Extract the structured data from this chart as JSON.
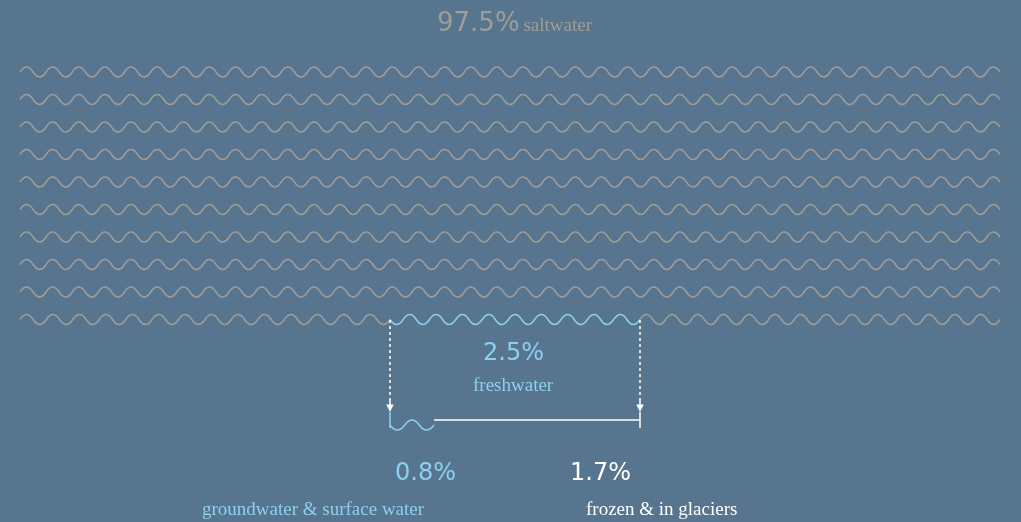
{
  "chart_data": {
    "type": "other",
    "categories": [
      "saltwater",
      "freshwater",
      "groundwater & surface water",
      "frozen & in glaciers"
    ],
    "values": [
      97.5,
      2.5,
      0.8,
      1.7
    ],
    "value_labels": [
      "97.5%",
      "2.5%",
      "0.8%",
      "1.7%"
    ],
    "colors": [
      "#a09d98",
      "#8ccfee",
      "#8ccfee",
      "#ffffff"
    ]
  }
}
